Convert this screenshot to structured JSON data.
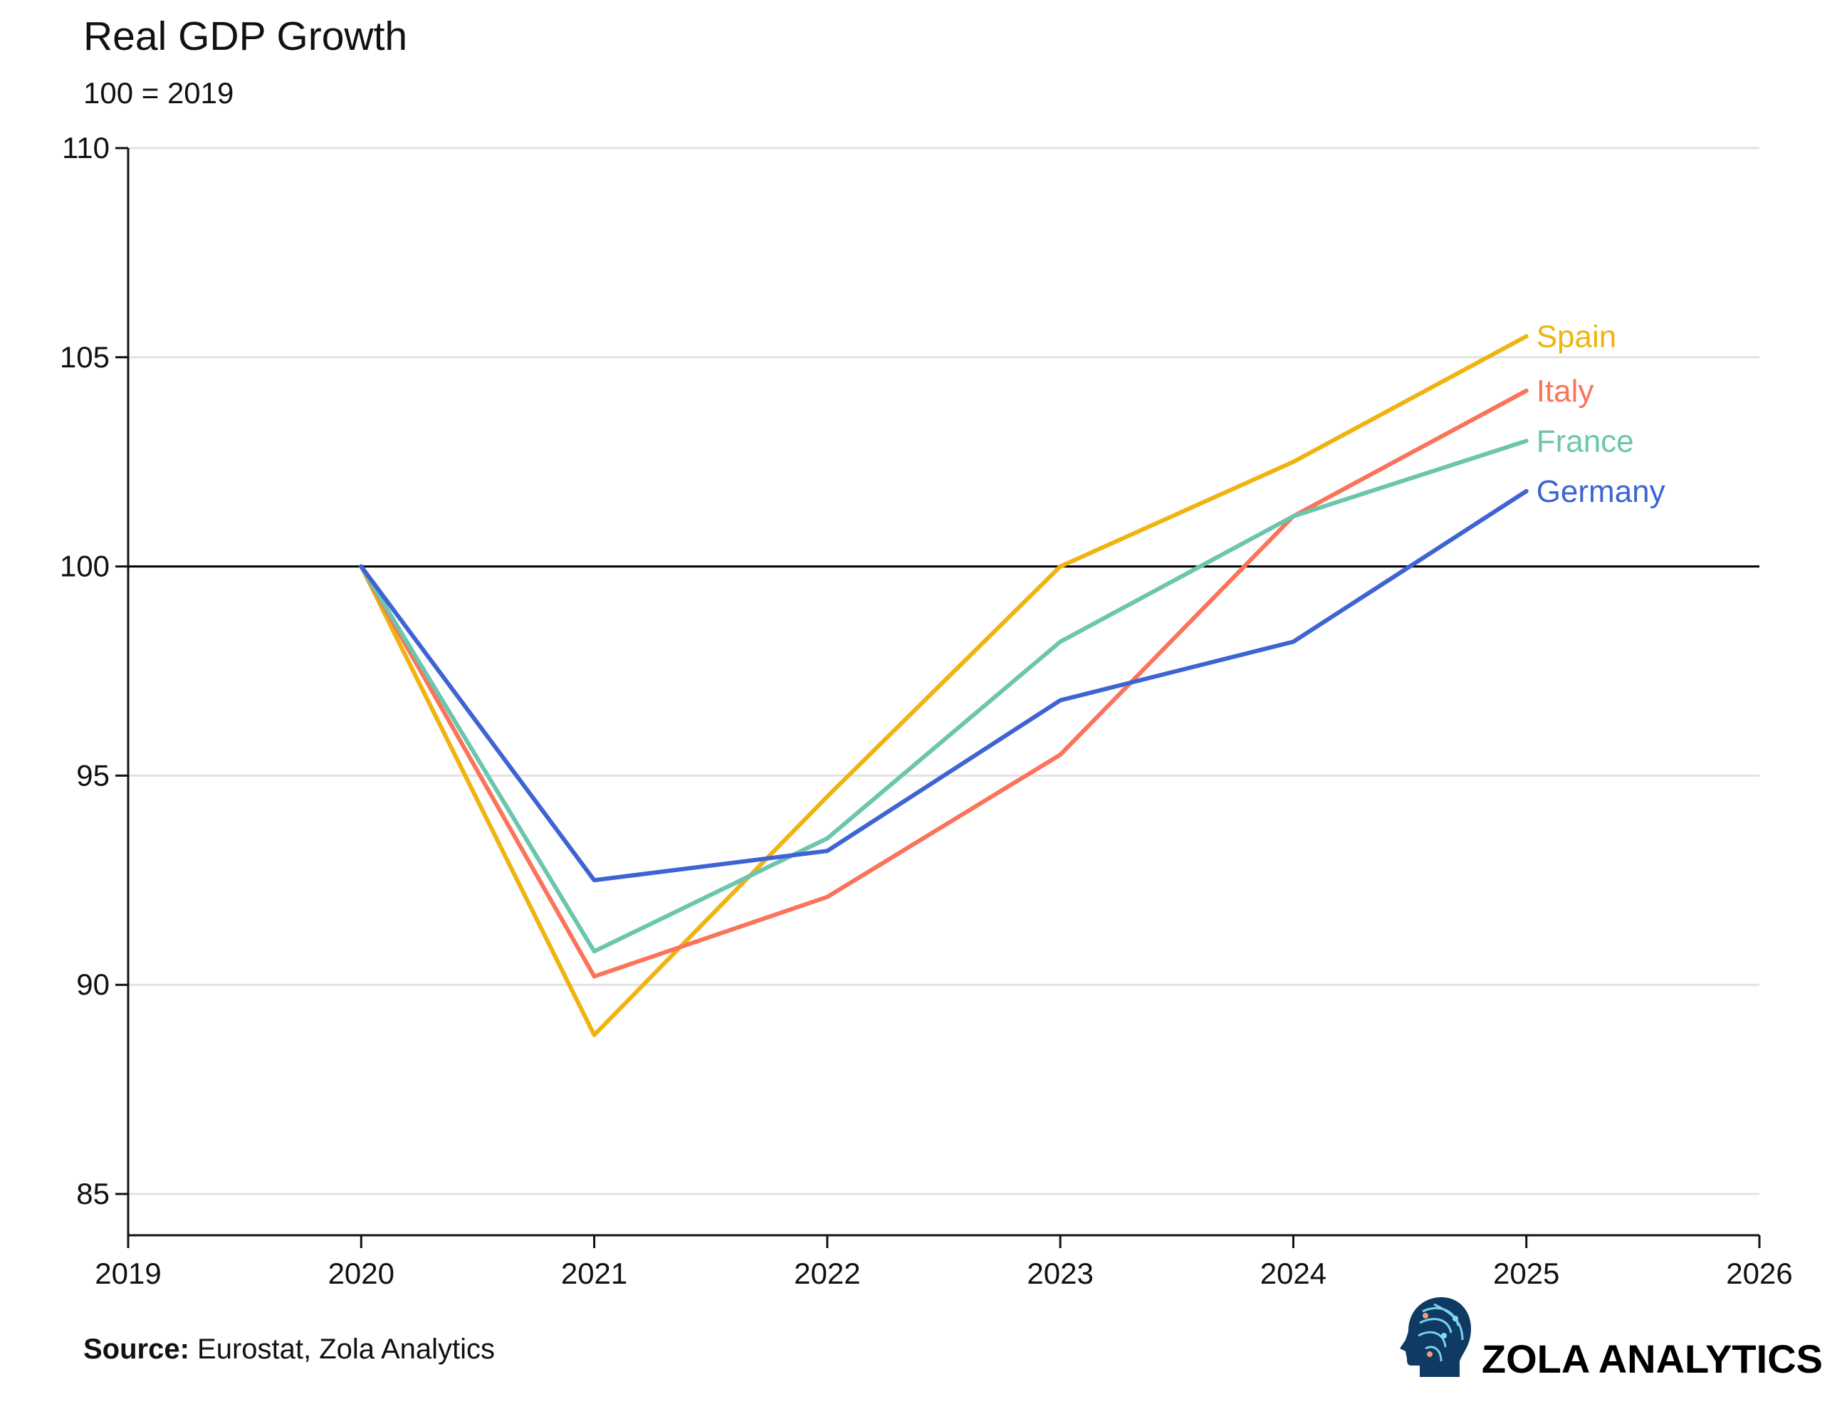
{
  "chart_data": {
    "type": "line",
    "title": "Real GDP Growth",
    "subtitle": "100 = 2019",
    "xlabel": "",
    "ylabel": "",
    "x": [
      2020,
      2021,
      2022,
      2023,
      2024,
      2025
    ],
    "xlim": [
      2019,
      2026
    ],
    "ylim": [
      84,
      110
    ],
    "xticks": [
      "2019",
      "2020",
      "2021",
      "2022",
      "2023",
      "2024",
      "2025",
      "2026"
    ],
    "yticks": [
      "85",
      "90",
      "95",
      "100",
      "105",
      "110"
    ],
    "reference_line": 100,
    "grid": "horizontal",
    "legend": "direct labels at line ends",
    "series": [
      {
        "name": "Spain",
        "color": "#f0b30f",
        "values": [
          100,
          88.8,
          94.5,
          100.0,
          102.5,
          105.5
        ]
      },
      {
        "name": "Italy",
        "color": "#fb735a",
        "values": [
          100,
          90.2,
          92.1,
          95.5,
          101.2,
          104.2
        ]
      },
      {
        "name": "France",
        "color": "#6cc5ad",
        "values": [
          100,
          90.8,
          93.5,
          98.2,
          101.2,
          103.0
        ]
      },
      {
        "name": "Germany",
        "color": "#3e63d3",
        "values": [
          100,
          92.5,
          93.2,
          96.8,
          98.2,
          101.8
        ]
      }
    ]
  },
  "footer": {
    "source_label": "Source:",
    "source_text": " Eurostat, Zola Analytics",
    "brand": "ZOLA ANALYTICS",
    "logo_icon": "ai-head-icon"
  }
}
